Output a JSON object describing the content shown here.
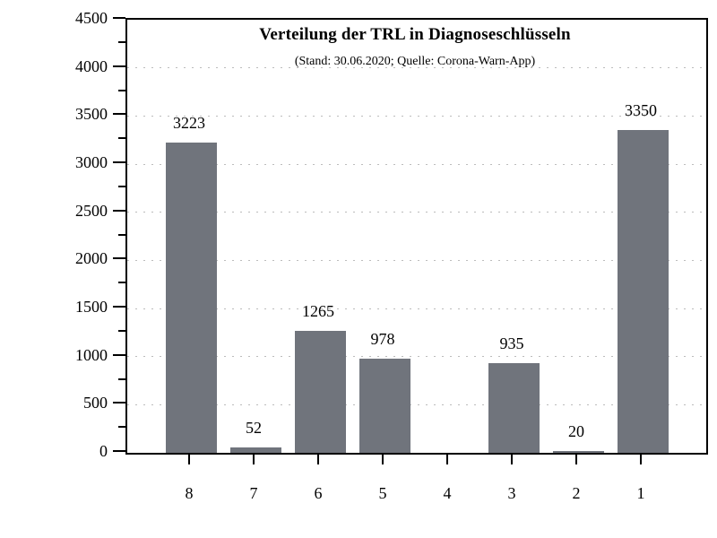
{
  "chart_data": {
    "type": "bar",
    "title": "Verteilung der TRL in Diagnoseschlüsseln",
    "subtitle": "(Stand: 30.06.2020; Quelle: Corona-Warn-App)",
    "categories": [
      "8",
      "7",
      "6",
      "5",
      "4",
      "3",
      "2",
      "1"
    ],
    "values": [
      3223,
      52,
      1265,
      978,
      0,
      935,
      20,
      3350
    ],
    "value_labels": [
      "3223",
      "52",
      "1265",
      "978",
      "",
      "935",
      "20",
      "3350"
    ],
    "xlabel": "",
    "ylabel": "",
    "ylim": [
      0,
      4500
    ],
    "ytick_step": 500,
    "yminor_step": 250,
    "ytick_labels": [
      "0",
      "500",
      "1000",
      "1500",
      "2000",
      "2500",
      "3000",
      "3500",
      "4000",
      "4500"
    ],
    "grid": "horizontal dotted lines at major y ticks",
    "legend": "none",
    "bar_color": "#70747C",
    "axis_color": "#000000",
    "grid_color": "#bcbcbc",
    "background_color": "#ffffff"
  }
}
